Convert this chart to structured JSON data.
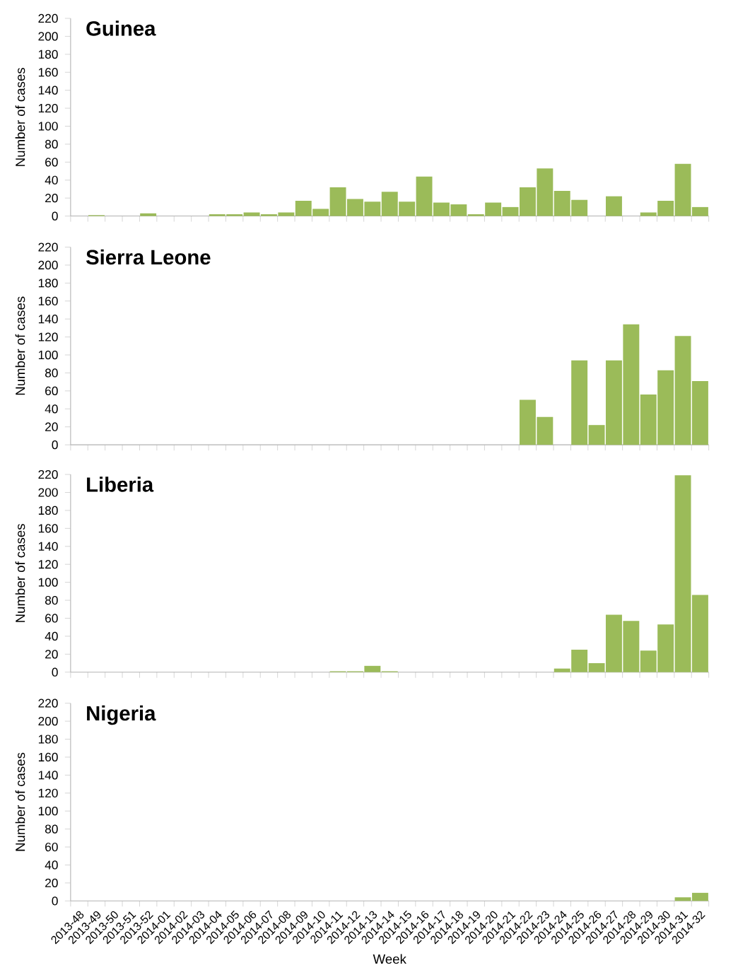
{
  "chart_data": [
    {
      "type": "bar",
      "title": "Guinea",
      "ylabel": "Number of cases",
      "color": "#9bbb59",
      "ylim": [
        0,
        220
      ],
      "yticks": [
        0,
        20,
        40,
        60,
        80,
        100,
        120,
        140,
        160,
        180,
        200,
        220
      ],
      "tick_labels": "y",
      "categories": [
        "2013-48",
        "2013-49",
        "2013-50",
        "2013-51",
        "2013-52",
        "2014-01",
        "2014-02",
        "2014-03",
        "2014-04",
        "2014-05",
        "2014-06",
        "2014-07",
        "2014-08",
        "2014-09",
        "2014-10",
        "2014-11",
        "2014-12",
        "2014-13",
        "2014-14",
        "2014-15",
        "2014-16",
        "2014-17",
        "2014-18",
        "2014-19",
        "2014-20",
        "2014-21",
        "2014-22",
        "2014-23",
        "2014-24",
        "2014-25",
        "2014-26",
        "2014-27",
        "2014-28",
        "2014-29",
        "2014-30",
        "2014-31",
        "2014-32"
      ],
      "values": [
        0,
        1,
        0,
        0,
        3,
        0,
        0,
        0,
        2,
        2,
        4,
        2,
        4,
        17,
        8,
        32,
        19,
        16,
        27,
        16,
        44,
        15,
        13,
        2,
        15,
        10,
        32,
        53,
        28,
        18,
        0,
        22,
        0,
        4,
        17,
        58,
        10
      ]
    },
    {
      "type": "bar",
      "title": "Sierra Leone",
      "ylabel": "Number of cases",
      "color": "#9bbb59",
      "ylim": [
        0,
        220
      ],
      "yticks": [
        0,
        20,
        40,
        60,
        80,
        100,
        120,
        140,
        160,
        180,
        200,
        220
      ],
      "tick_labels": "y",
      "categories": [
        "2013-48",
        "2013-49",
        "2013-50",
        "2013-51",
        "2013-52",
        "2014-01",
        "2014-02",
        "2014-03",
        "2014-04",
        "2014-05",
        "2014-06",
        "2014-07",
        "2014-08",
        "2014-09",
        "2014-10",
        "2014-11",
        "2014-12",
        "2014-13",
        "2014-14",
        "2014-15",
        "2014-16",
        "2014-17",
        "2014-18",
        "2014-19",
        "2014-20",
        "2014-21",
        "2014-22",
        "2014-23",
        "2014-24",
        "2014-25",
        "2014-26",
        "2014-27",
        "2014-28",
        "2014-29",
        "2014-30",
        "2014-31",
        "2014-32"
      ],
      "values": [
        0,
        0,
        0,
        0,
        0,
        0,
        0,
        0,
        0,
        0,
        0,
        0,
        0,
        0,
        0,
        0,
        0,
        0,
        0,
        0,
        0,
        0,
        0,
        0,
        0,
        0,
        50,
        31,
        0,
        94,
        22,
        94,
        134,
        56,
        83,
        121,
        71
      ]
    },
    {
      "type": "bar",
      "title": "Liberia",
      "ylabel": "Number of cases",
      "color": "#9bbb59",
      "ylim": [
        0,
        220
      ],
      "yticks": [
        0,
        20,
        40,
        60,
        80,
        100,
        120,
        140,
        160,
        180,
        200,
        220
      ],
      "tick_labels": "y",
      "categories": [
        "2013-48",
        "2013-49",
        "2013-50",
        "2013-51",
        "2013-52",
        "2014-01",
        "2014-02",
        "2014-03",
        "2014-04",
        "2014-05",
        "2014-06",
        "2014-07",
        "2014-08",
        "2014-09",
        "2014-10",
        "2014-11",
        "2014-12",
        "2014-13",
        "2014-14",
        "2014-15",
        "2014-16",
        "2014-17",
        "2014-18",
        "2014-19",
        "2014-20",
        "2014-21",
        "2014-22",
        "2014-23",
        "2014-24",
        "2014-25",
        "2014-26",
        "2014-27",
        "2014-28",
        "2014-29",
        "2014-30",
        "2014-31",
        "2014-32"
      ],
      "values": [
        0,
        0,
        0,
        0,
        0,
        0,
        0,
        0,
        0,
        0,
        0,
        0,
        0,
        0,
        0,
        1,
        1,
        7,
        1,
        0,
        0,
        0,
        0,
        0,
        0,
        0,
        0,
        0,
        4,
        25,
        10,
        64,
        57,
        24,
        53,
        219,
        86
      ]
    },
    {
      "type": "bar",
      "title": "Nigeria",
      "ylabel": "Number of cases",
      "xlabel": "Week",
      "color": "#9bbb59",
      "ylim": [
        0,
        220
      ],
      "yticks": [
        0,
        20,
        40,
        60,
        80,
        100,
        120,
        140,
        160,
        180,
        200,
        220
      ],
      "categories": [
        "2013-48",
        "2013-49",
        "2013-50",
        "2013-51",
        "2013-52",
        "2014-01",
        "2014-02",
        "2014-03",
        "2014-04",
        "2014-05",
        "2014-06",
        "2014-07",
        "2014-08",
        "2014-09",
        "2014-10",
        "2014-11",
        "2014-12",
        "2014-13",
        "2014-14",
        "2014-15",
        "2014-16",
        "2014-17",
        "2014-18",
        "2014-19",
        "2014-20",
        "2014-21",
        "2014-22",
        "2014-23",
        "2014-24",
        "2014-25",
        "2014-26",
        "2014-27",
        "2014-28",
        "2014-29",
        "2014-30",
        "2014-31",
        "2014-32"
      ],
      "values": [
        0,
        0,
        0,
        0,
        0,
        0,
        0,
        0,
        0,
        0,
        0,
        0,
        0,
        0,
        0,
        0,
        0,
        0,
        0,
        0,
        0,
        0,
        0,
        0,
        0,
        0,
        0,
        0,
        0,
        0,
        0,
        0,
        0,
        0,
        0,
        4,
        9
      ]
    }
  ]
}
